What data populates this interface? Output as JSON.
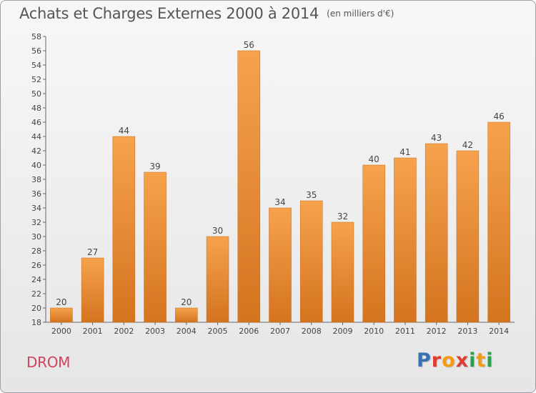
{
  "header": {
    "title": "Achats et Charges Externes 2000 à 2014",
    "unit": "(en milliers d'€)"
  },
  "footer": {
    "place": "DROM",
    "logo_text": "Proxiti",
    "logo_colors": [
      "#3b6fb6",
      "#e03c31",
      "#f39c12",
      "#e03c31",
      "#2e9e4f",
      "#f39c12",
      "#2e9e4f"
    ]
  },
  "chart_data": {
    "type": "bar",
    "title": "Achats et Charges Externes 2000 à 2014",
    "subtitle": "(en milliers d'€)",
    "xlabel": "",
    "ylabel": "",
    "categories": [
      "2000",
      "2001",
      "2002",
      "2003",
      "2004",
      "2005",
      "2006",
      "2007",
      "2008",
      "2009",
      "2010",
      "2011",
      "2012",
      "2013",
      "2014"
    ],
    "values": [
      20,
      27,
      44,
      39,
      20,
      30,
      56,
      34,
      35,
      32,
      40,
      41,
      43,
      42,
      46
    ],
    "ylim": [
      18,
      58
    ],
    "yticks": [
      18,
      20,
      22,
      24,
      26,
      28,
      30,
      32,
      34,
      36,
      38,
      40,
      42,
      44,
      46,
      48,
      50,
      52,
      54,
      56,
      58
    ],
    "grid": false,
    "legend": "none",
    "bar_color_top": "#f6a24c",
    "bar_color_bottom": "#d4741f"
  }
}
